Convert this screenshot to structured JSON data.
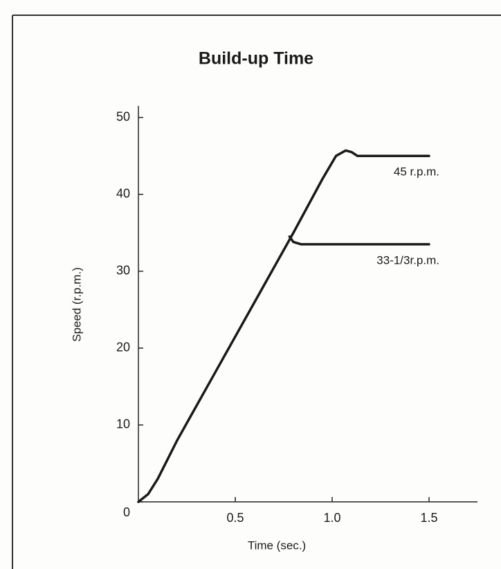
{
  "chart_data": {
    "type": "line",
    "title": "Build-up Time",
    "x_label": "Time (sec.)",
    "y_label": "Speed (r.p.m.)",
    "series": [
      {
        "name": "45 r.p.m.",
        "color": "#1a1a1a",
        "x": [
          0,
          0.05,
          0.1,
          0.2,
          0.4,
          0.6,
          0.8,
          0.95,
          1.02,
          1.07,
          1.1,
          1.13,
          1.5
        ],
        "values": [
          0,
          1,
          3,
          8,
          17,
          26,
          35,
          42,
          45,
          45.7,
          45.5,
          45,
          45
        ]
      },
      {
        "name": "33-1/3r.p.m.",
        "color": "#1a1a1a",
        "x": [
          0.78,
          0.8,
          0.84,
          1.5
        ],
        "values": [
          34.5,
          33.8,
          33.5,
          33.5
        ]
      }
    ],
    "xlim": [
      0,
      1.75
    ],
    "ylim": [
      0,
      51.5
    ],
    "xticks": [
      0.5,
      {
        "value": 1,
        "label": "1.0"
      },
      1.5
    ],
    "yticks": [
      0,
      10,
      20,
      30,
      40,
      50
    ],
    "grid": false
  }
}
